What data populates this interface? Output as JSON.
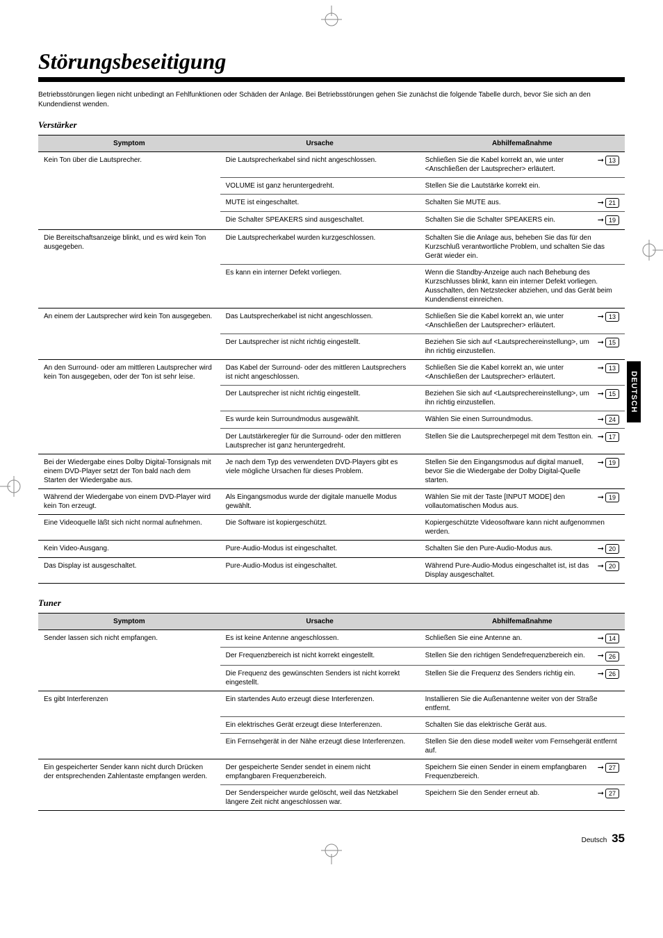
{
  "title": "Störungsbeseitigung",
  "intro": "Betriebsstörungen liegen nicht unbedingt an Fehlfunktionen oder Schäden der Anlage. Bei Betriebsstörungen gehen Sie zunächst die folgende Tabelle durch, bevor Sie sich an den Kundendienst wenden.",
  "section1_title": "Verstärker",
  "section2_title": "Tuner",
  "headers": {
    "symptom": "Symptom",
    "ursache": "Ursache",
    "abhilfe": "Abhilfemaßnahme"
  },
  "side_tab": "DEUTSCH",
  "footer_label": "Deutsch",
  "footer_page": "35",
  "t1": [
    {
      "s": "Kein Ton über die Lautsprecher.",
      "u": "Die Lautsprecherkabel sind nicht angeschlossen.",
      "a": "Schließen Sie die Kabel korrekt an, wie unter <Anschließen der Lautsprecher> erläutert.",
      "p": "13",
      "ge": false
    },
    {
      "s": "",
      "u": "VOLUME ist ganz heruntergedreht.",
      "a": "Stellen Sie die Lautstärke korrekt ein.",
      "p": "",
      "ge": false
    },
    {
      "s": "",
      "u": "MUTE ist eingeschaltet.",
      "a": "Schalten Sie MUTE aus.",
      "p": "21",
      "ge": false
    },
    {
      "s": "",
      "u": "Die Schalter SPEAKERS sind ausgeschaltet.",
      "a": "Schalten Sie die Schalter SPEAKERS ein.",
      "p": "19",
      "ge": true
    },
    {
      "s": "Die Bereitschaftsanzeige blinkt, und es wird kein Ton ausgegeben.",
      "u": "Die Lautsprecherkabel wurden kurzgeschlossen.",
      "a": "Schalten Sie die Anlage aus, beheben Sie das für den Kurzschluß verantwortliche Problem, und schalten Sie das Gerät wieder ein.",
      "p": "",
      "ge": false
    },
    {
      "s": "",
      "u": "Es kann ein interner Defekt vorliegen.",
      "a": "Wenn die Standby-Anzeige auch nach Behebung des Kurzschlusses blinkt, kann ein interner Defekt vorliegen. Ausschalten, den Netzstecker abziehen, und das Gerät beim Kundendienst einreichen.",
      "p": "",
      "ge": true
    },
    {
      "s": "An einem der Lautsprecher wird kein Ton ausgegeben.",
      "u": "Das Lautsprecherkabel ist nicht angeschlossen.",
      "a": "Schließen Sie die Kabel korrekt an, wie unter <Anschließen der Lautsprecher> erläutert.",
      "p": "13",
      "ge": false
    },
    {
      "s": "",
      "u": "Der Lautsprecher ist nicht richtig eingestellt.",
      "a": "Beziehen Sie sich auf <Lautsprechereinstellung>, um ihn richtig einzustellen.",
      "p": "15",
      "ge": true
    },
    {
      "s": "An den Surround- oder am mittleren Lautsprecher wird kein Ton ausgegeben, oder der Ton ist sehr leise.",
      "u": "Das Kabel der Surround- oder des mittleren Lautsprechers ist nicht angeschlossen.",
      "a": "Schließen Sie die Kabel korrekt an, wie unter <Anschließen der Lautsprecher> erläutert.",
      "p": "13",
      "ge": false
    },
    {
      "s": "",
      "u": "Der Lautsprecher ist nicht richtig eingestellt.",
      "a": "Beziehen Sie sich auf <Lautsprechereinstellung>, um ihn richtig einzustellen.",
      "p": "15",
      "ge": false
    },
    {
      "s": "",
      "u": "Es wurde kein Surroundmodus ausgewählt.",
      "a": "Wählen Sie einen Surroundmodus.",
      "p": "24",
      "ge": false
    },
    {
      "s": "",
      "u": "Der Lautstärkeregler für die Surround- oder den mittleren Lautsprecher ist ganz heruntergedreht.",
      "a": "Stellen Sie die Lautsprecherpegel mit dem Testton ein.",
      "p": "17",
      "ge": true
    },
    {
      "s": "Bei der Wiedergabe eines Dolby Digital-Tonsignals mit einem DVD-Player setzt der Ton bald nach dem Starten der Wiedergabe aus.",
      "u": "Je nach dem Typ des verwendeten DVD-Players gibt es viele mögliche Ursachen für dieses Problem.",
      "a": "Stellen Sie den Eingangsmodus auf digital manuell, bevor Sie die Wiedergabe der Dolby Digital-Quelle starten.",
      "p": "19",
      "ge": true
    },
    {
      "s": "Während der Wiedergabe von einem DVD-Player wird kein Ton erzeugt.",
      "u": "Als Eingangsmodus wurde der digitale manuelle Modus gewählt.",
      "a": "Wählen Sie mit der Taste [INPUT MODE] den vollautomatischen Modus aus.",
      "p": "19",
      "ge": true
    },
    {
      "s": "Eine Videoquelle läßt sich nicht normal aufnehmen.",
      "u": "Die Software ist kopiergeschützt.",
      "a": "Kopiergeschützte Videosoftware kann nicht aufgenommen werden.",
      "p": "",
      "ge": true
    },
    {
      "s": "Kein Video-Ausgang.",
      "u": "Pure-Audio-Modus ist eingeschaltet.",
      "a": "Schalten Sie den Pure-Audio-Modus aus.",
      "p": "20",
      "ge": true
    },
    {
      "s": "Das Display ist ausgeschaltet.",
      "u": "Pure-Audio-Modus ist eingeschaltet.",
      "a": "Während Pure-Audio-Modus eingeschaltet ist, ist das Display ausgeschaltet.",
      "p": "20",
      "ge": true
    }
  ],
  "t2": [
    {
      "s": "Sender lassen sich nicht empfangen.",
      "u": "Es ist keine Antenne angeschlossen.",
      "a": "Schließen Sie eine Antenne an.",
      "p": "14",
      "ge": false
    },
    {
      "s": "",
      "u": "Der Frequenzbereich ist nicht korrekt eingestellt.",
      "a": "Stellen Sie den richtigen Sendefrequenzbereich ein.",
      "p": "26",
      "ge": false
    },
    {
      "s": "",
      "u": "Die Frequenz des gewünschten Senders ist nicht korrekt eingestellt.",
      "a": "Stellen Sie die Frequenz des Senders richtig ein.",
      "p": "26",
      "ge": true
    },
    {
      "s": "Es gibt Interferenzen",
      "u": "Ein startendes Auto erzeugt diese Interferenzen.",
      "a": "Installieren Sie die Außenantenne weiter von der Straße entfernt.",
      "p": "",
      "ge": false
    },
    {
      "s": "",
      "u": "Ein elektrisches Gerät erzeugt diese Interferenzen.",
      "a": "Schalten Sie das elektrische Gerät aus.",
      "p": "",
      "ge": false
    },
    {
      "s": "",
      "u": "Ein Fernsehgerät in der Nähe erzeugt diese Interferenzen.",
      "a": "Stellen Sie den diese modell weiter vom Fernsehgerät entfernt auf.",
      "p": "",
      "ge": true
    },
    {
      "s": "Ein gespeicherter Sender kann nicht durch Drücken der entsprechenden Zahlentaste empfangen werden.",
      "u": "Der gespeicherte Sender sendet in einem nicht empfangbaren Frequenzbereich.",
      "a": "Speichern Sie einen Sender in einem empfangbaren Frequenzbereich.",
      "p": "27",
      "ge": false
    },
    {
      "s": "",
      "u": "Der Senderspeicher wurde gelöscht, weil das Netzkabel längere Zeit nicht angeschlossen war.",
      "a": "Speichern Sie den Sender erneut ab.",
      "p": "27",
      "ge": true
    }
  ]
}
